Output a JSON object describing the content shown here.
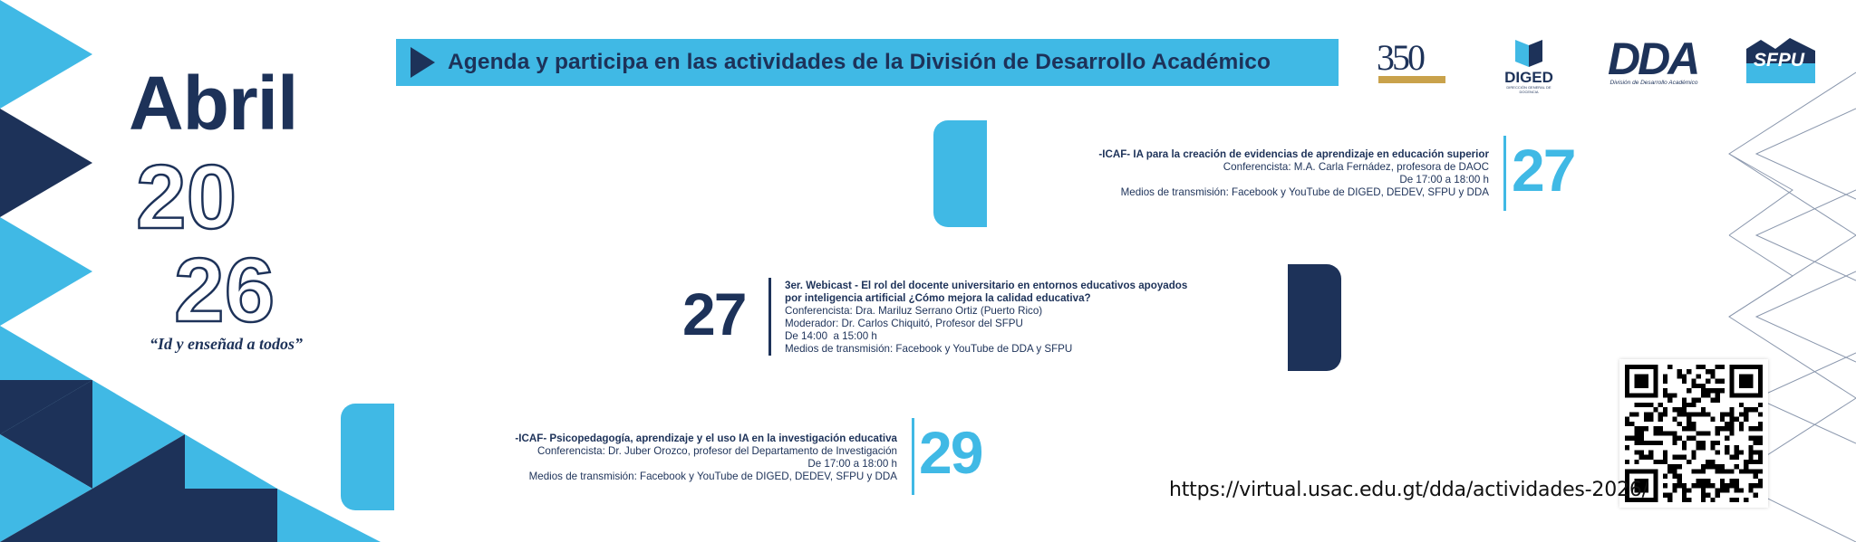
{
  "calendar": {
    "month": "Abril",
    "year_top": "20",
    "year_bottom": "26",
    "motto": "“Id y enseñad a todos”"
  },
  "banner": {
    "title": "Agenda y participa en las actividades de la División de Desarrollo Académico",
    "icon": "play-icon",
    "background_color": "#40b9e5",
    "text_color": "#1d3259"
  },
  "logos": {
    "usac_350": {
      "text": "350"
    },
    "diged": {
      "label": "DIGED",
      "subtitle": "DIRECCIÓN GENERAL DE DOCENCIA"
    },
    "dda": {
      "label": "DDA",
      "subtitle": "División de Desarrollo Académico"
    },
    "sfpu": {
      "label": "SFPU"
    }
  },
  "events": [
    {
      "day": "27",
      "title": "-ICAF- IA para la creación de evidencias de aprendizaje en educación superior",
      "lines": [
        "Conferencista: M.A. Carla Fernádez, profesora de DAOC",
        "De 17:00 a 18:00 h",
        "Medios de transmisión: Facebook y YouTube de DIGED, DEDEV, SFPU y DDA"
      ]
    },
    {
      "day": "27",
      "title_lines": [
        "3er. Webicast - El rol del docente universitario en entornos educativos apoyados",
        "por inteligencia artificial ¿Cómo mejora la calidad educativa?"
      ],
      "lines": [
        "Conferencista: Dra. Mariluz Serrano Ortiz (Puerto Rico)",
        "Moderador: Dr. Carlos Chiquitó, Profesor del SFPU",
        "De 14:00  a 15:00 h",
        "Medios de transmisión: Facebook y YouTube de DDA y SFPU"
      ]
    },
    {
      "day": "29",
      "title": "-ICAF- Psicopedagogía, aprendizaje y el uso IA en la investigación educativa",
      "lines": [
        "Conferencista: Dr. Juber Orozco, profesor del Departamento de Investigación",
        "De 17:00 a 18:00 h",
        "Medios de transmisión: Facebook y YouTube de DIGED, DEDEV, SFPU y DDA"
      ]
    }
  ],
  "link": {
    "url": "https://virtual.usac.edu.gt/dda/actividades-2026/",
    "qr_icon": "qr-code-icon"
  },
  "colors": {
    "navy": "#1d3259",
    "cyan": "#40b9e5"
  }
}
